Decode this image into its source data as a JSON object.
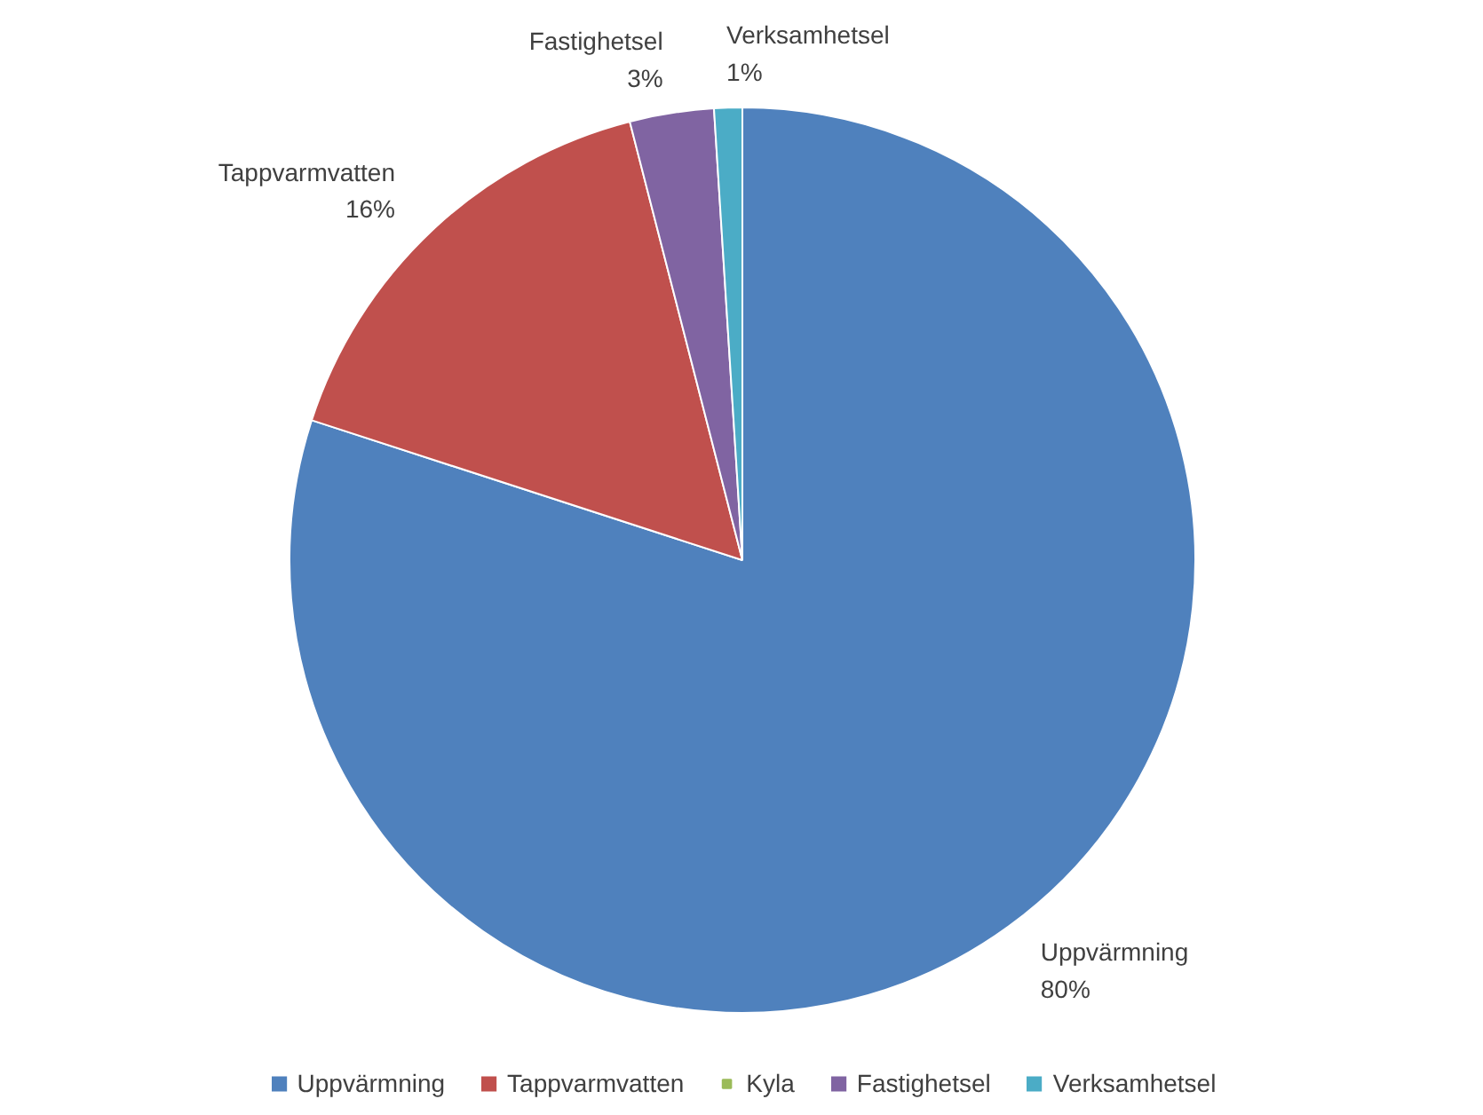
{
  "chart_data": {
    "type": "pie",
    "categories": [
      "Uppvärmning",
      "Tappvarmvatten",
      "Kyla",
      "Fastighetsel",
      "Verksamhetsel"
    ],
    "values": [
      80,
      16,
      0,
      3,
      1
    ],
    "colors": [
      "#4f81bd",
      "#c0504d",
      "#9bbb59",
      "#8064a2",
      "#4bacc6"
    ],
    "value_labels": [
      "80%",
      "16%",
      null,
      "3%",
      "1%"
    ],
    "legend": "bottom"
  }
}
